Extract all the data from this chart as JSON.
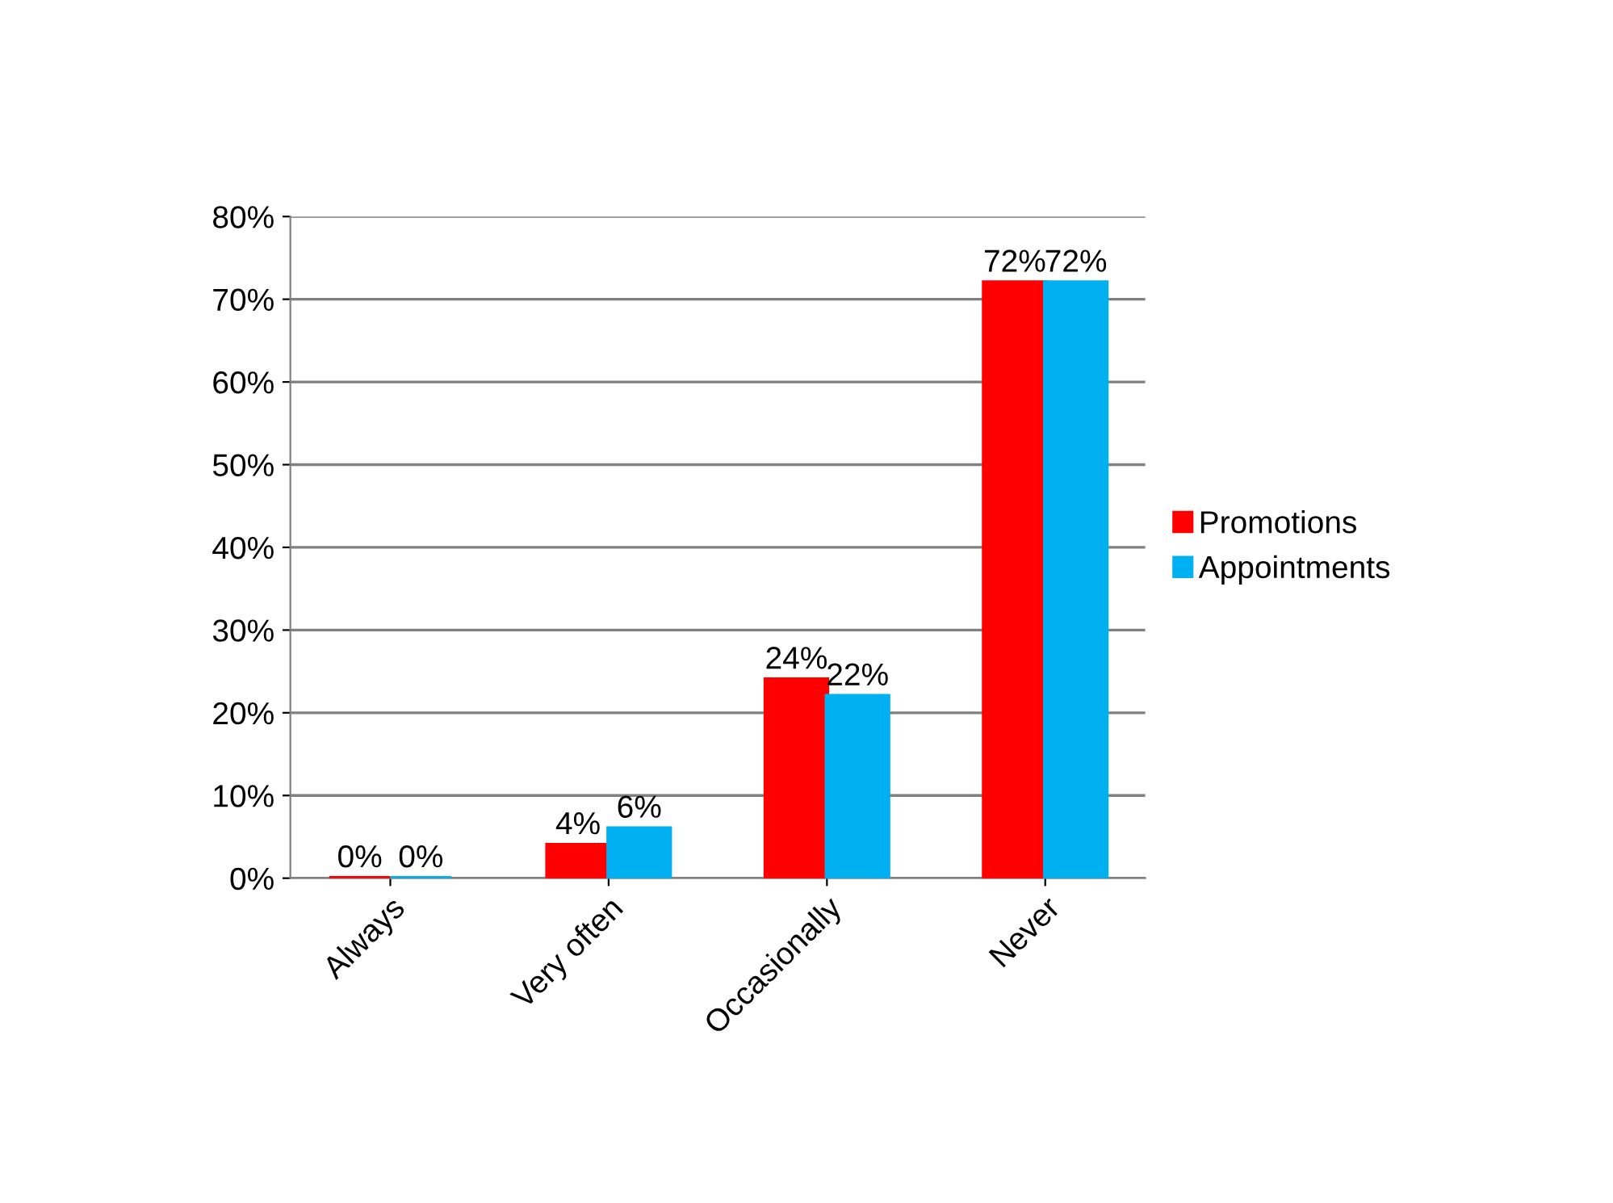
{
  "chart_data": {
    "type": "bar",
    "categories": [
      "Always",
      "Very often",
      "Occasionally",
      "Never"
    ],
    "series": [
      {
        "name": "Promotions",
        "color": "#ff0000",
        "values": [
          0,
          4,
          24,
          72
        ],
        "value_labels": [
          "0%",
          "4%",
          "24%",
          "72%"
        ]
      },
      {
        "name": "Appointments",
        "color": "#00b0f0",
        "values": [
          0,
          6,
          22,
          72
        ],
        "value_labels": [
          "0%",
          "6%",
          "22%",
          "72%"
        ]
      }
    ],
    "ylim": [
      0,
      80
    ],
    "yticks": [
      {
        "value": 0,
        "label": "0%"
      },
      {
        "value": 10,
        "label": "10%"
      },
      {
        "value": 20,
        "label": "20%"
      },
      {
        "value": 30,
        "label": "30%"
      },
      {
        "value": 40,
        "label": "40%"
      },
      {
        "value": 50,
        "label": "50%"
      },
      {
        "value": 60,
        "label": "60%"
      },
      {
        "value": 70,
        "label": "70%"
      },
      {
        "value": 80,
        "label": "80%"
      }
    ],
    "grid": "y",
    "legend": "right"
  }
}
